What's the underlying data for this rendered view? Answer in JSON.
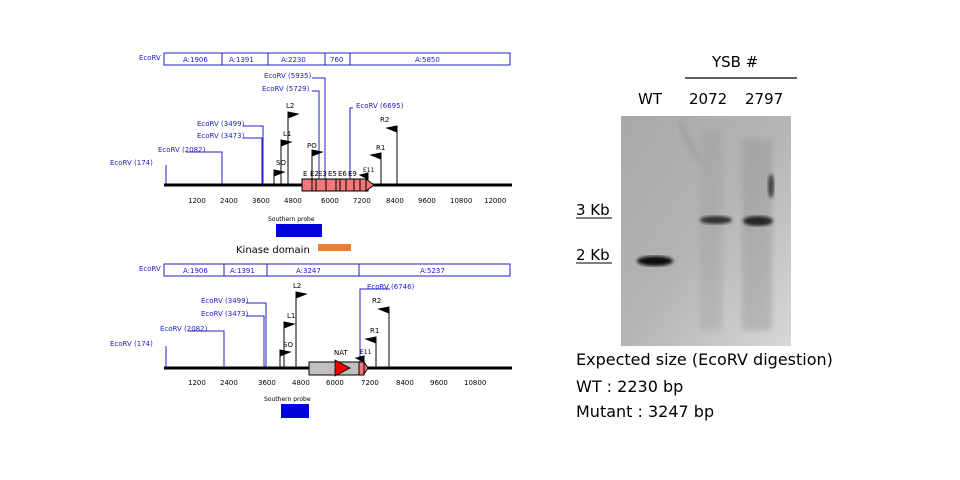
{
  "wt_map": {
    "enzyme_label": "EcoRV",
    "fragments": [
      "A:1906",
      "A:1391",
      "A:2230",
      "760",
      "A:5850"
    ],
    "sites": [
      "EcoRV (174)",
      "EcoRV (2082)",
      "EcoRV (3473)",
      "EcoRV (3499)",
      "EcoRV (5729)",
      "EcoRV (5935)",
      "EcoRV (6695)"
    ],
    "primers": [
      "L2",
      "L1",
      "SO",
      "PO",
      "R2",
      "R1",
      "E11"
    ],
    "exons": [
      "E",
      "E2",
      "E3",
      "E5",
      "E6",
      "E9"
    ],
    "ticks": [
      "1200",
      "2400",
      "3600",
      "4800",
      "6000",
      "7200",
      "8400",
      "9600",
      "10800",
      "12000"
    ],
    "probe_label": "Southern probe",
    "kinase_label": "Kinase domain"
  },
  "mut_map": {
    "enzyme_label": "EcoRV",
    "fragments": [
      "A:1906",
      "A:1391",
      "A:3247",
      "A:5237"
    ],
    "sites": [
      "EcoRV (174)",
      "EcoRV (2082)",
      "EcoRV (3473)",
      "EcoRV (3499)",
      "EcoRV (6746)"
    ],
    "primers": [
      "L2",
      "L1",
      "SO",
      "R2",
      "R1",
      "E11",
      "NAT"
    ],
    "ticks": [
      "1200",
      "2400",
      "3600",
      "4800",
      "6000",
      "7200",
      "8400",
      "9600",
      "10800"
    ],
    "probe_label": "Southern probe"
  },
  "blot": {
    "group_label": "YSB #",
    "lanes": [
      "WT",
      "2072",
      "2797"
    ],
    "markers": [
      "3 Kb",
      "2 Kb"
    ]
  },
  "expected": {
    "title": "Expected size (EcoRV digestion)",
    "wt": "WT : 2230 bp",
    "mutant": "Mutant : 3247 bp"
  },
  "colors": {
    "site_blue": "#2020c0",
    "exon_red": "#f07878",
    "probe_blue": "#0000dd",
    "kinase_orange": "#ed7d31",
    "nat_red": "#ee0000",
    "nat_gray": "#c0c0c0"
  }
}
